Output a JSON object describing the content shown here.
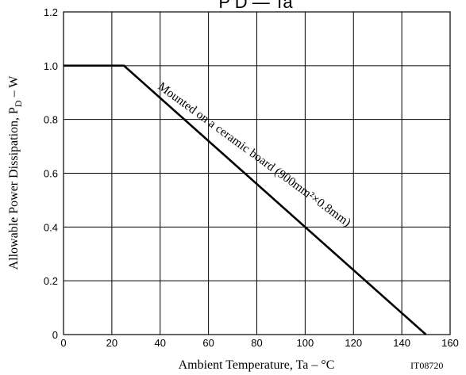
{
  "chart_data": {
    "type": "line",
    "title": "P D — Ta",
    "xlabel": "Ambient Temperature, Ta  –  °C",
    "ylabel": "Allowable Power Dissipation, P",
    "ylabel_sub": "D",
    "ylabel_suffix": "  –  W",
    "x_ticks": [
      0,
      20,
      40,
      60,
      80,
      100,
      120,
      140,
      160
    ],
    "y_ticks": [
      "0",
      "0.2",
      "0.4",
      "0.6",
      "0.8",
      "1.0",
      "1.2"
    ],
    "xlim": [
      0,
      160
    ],
    "ylim": [
      0,
      1.2
    ],
    "grid": true,
    "series": [
      {
        "x": [
          0,
          25,
          150
        ],
        "y": [
          1.0,
          1.0,
          0
        ]
      }
    ],
    "annotation": "Mounted on a ceramic board (900mm²×0.8mm)",
    "code": "IT08720"
  }
}
